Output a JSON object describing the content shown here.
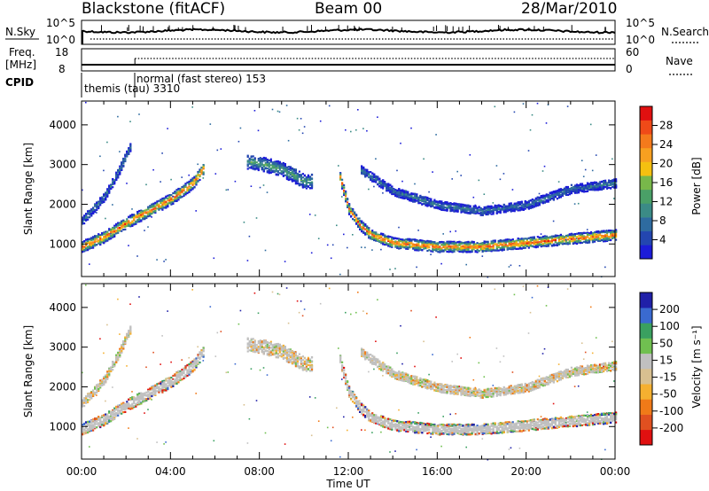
{
  "header": {
    "station": "Blackstone (fitACF)",
    "beam": "Beam 00",
    "date": "28/Mar/2010"
  },
  "noise_panel": {
    "left_label": "N.Sky",
    "left_ticks": [
      "10^5",
      "10^0"
    ],
    "right_ticks": [
      "10^5",
      "10^0"
    ],
    "right_label": "N.Search"
  },
  "freq_panel": {
    "left_label_top": "Freq.",
    "left_label_bottom": "[MHz]",
    "left_ticks": [
      "18",
      "8"
    ],
    "right_ticks": [
      "60",
      "0"
    ],
    "right_label": "Nave"
  },
  "cpid": {
    "label": "CPID",
    "modes": [
      {
        "text": "normal (fast stereo) 153",
        "start_hour": 2.4
      },
      {
        "text": "themis (tau) 3310",
        "start_hour": 0.0
      }
    ]
  },
  "axes": {
    "y_label": "Slant Range [km]",
    "y_ticks": [
      "1000",
      "2000",
      "3000",
      "4000"
    ],
    "x_label": "Time UT",
    "x_ticks": [
      "00:00",
      "04:00",
      "08:00",
      "12:00",
      "16:00",
      "20:00",
      "00:00"
    ]
  },
  "chart_data": [
    {
      "type": "heatmap",
      "title": "",
      "xlabel": "Time UT",
      "ylabel": "Slant Range [km]",
      "xlim": [
        0,
        24
      ],
      "ylim": [
        180,
        4600
      ],
      "colorbar": {
        "label": "Power [dB]",
        "ticks": [
          "4",
          "8",
          "12",
          "16",
          "20",
          "24",
          "28"
        ],
        "range": [
          0,
          30
        ]
      },
      "bands": [
        {
          "name": "main",
          "t": [
            0,
            1,
            2,
            3,
            4,
            5,
            5.5
          ],
          "r": [
            950,
            1200,
            1550,
            1850,
            2150,
            2550,
            2950
          ],
          "w": 120,
          "core": 26
        },
        {
          "name": "upper",
          "t": [
            0,
            1,
            1.7,
            2.2
          ],
          "r": [
            1600,
            2200,
            2900,
            3500
          ],
          "w": 90,
          "core": 8
        },
        {
          "name": "midnight",
          "t": [
            7.4,
            8,
            9,
            10,
            10.4
          ],
          "r": [
            3100,
            3050,
            2900,
            2600,
            2600
          ],
          "w": 150,
          "core": 12
        },
        {
          "name": "dusk",
          "t": [
            11.6,
            12,
            12.5,
            13,
            14,
            16,
            18,
            20,
            22,
            24
          ],
          "r": [
            2700,
            1900,
            1500,
            1250,
            1050,
            950,
            950,
            1050,
            1150,
            1250
          ],
          "w": 110,
          "core": 26
        },
        {
          "name": "upper2",
          "t": [
            12.5,
            14,
            16,
            18,
            20,
            22,
            24
          ],
          "r": [
            2900,
            2350,
            2000,
            1850,
            2000,
            2400,
            2550
          ],
          "w": 90,
          "core": 8
        }
      ]
    },
    {
      "type": "heatmap",
      "title": "",
      "xlabel": "Time UT",
      "ylabel": "Slant Range [km]",
      "xlim": [
        0,
        24
      ],
      "ylim": [
        180,
        4600
      ],
      "colorbar": {
        "label": "Velocity [m s⁻¹]",
        "ticks": [
          "200",
          "100",
          "50",
          "15",
          "-15",
          "-50",
          "-100",
          "-200"
        ],
        "range": [
          -250,
          250
        ]
      },
      "ground_scatter_color": "#c0c0c0"
    }
  ],
  "colors": {
    "power_scale": [
      "#1c1cd8",
      "#2346b0",
      "#2e6ba0",
      "#3b8b86",
      "#4aa067",
      "#78b84a",
      "#f5c010",
      "#f7a020",
      "#f47a1c",
      "#ef4a18",
      "#e01010"
    ],
    "velocity_scale": [
      "#2020a8",
      "#3a6ad0",
      "#3aa060",
      "#70c050",
      "#c0c0c0",
      "#d8c090",
      "#f5b030",
      "#f07a18",
      "#e05020",
      "#e01010"
    ]
  }
}
